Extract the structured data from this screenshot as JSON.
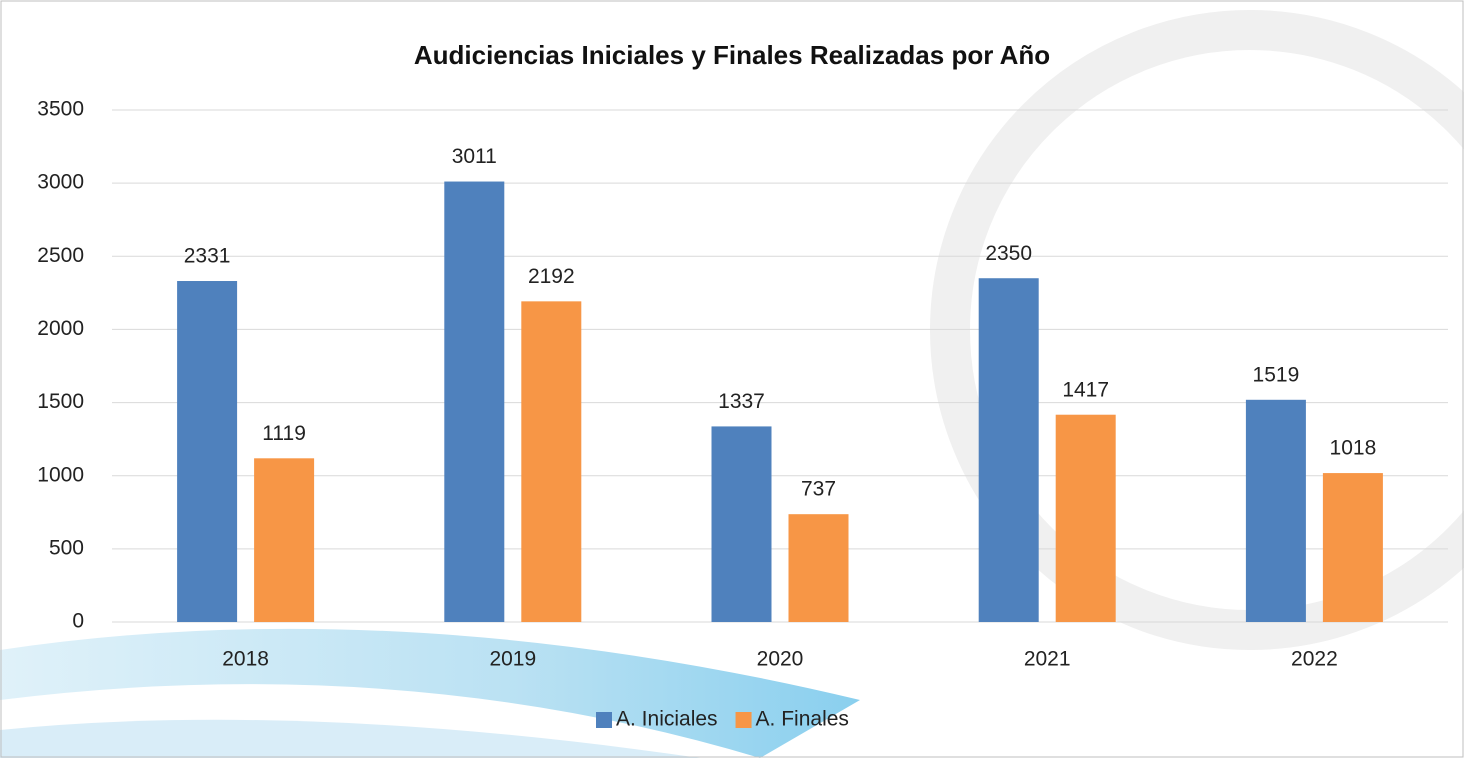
{
  "chart_data": {
    "type": "bar",
    "title": "Audiciencias Iniciales y Finales Realizadas por Año",
    "categories": [
      "2018",
      "2019",
      "2020",
      "2021",
      "2022"
    ],
    "series": [
      {
        "name": "A. Iniciales",
        "color": "#4f81bd",
        "values": [
          2331,
          3011,
          1337,
          2350,
          1519
        ]
      },
      {
        "name": "A. Finales",
        "color": "#f79646",
        "values": [
          1119,
          2192,
          737,
          1417,
          1018
        ]
      }
    ],
    "ylim": [
      0,
      3500
    ],
    "yticks": [
      0,
      500,
      1000,
      1500,
      2000,
      2500,
      3000,
      3500
    ],
    "grid": true,
    "legend": "bottom"
  }
}
